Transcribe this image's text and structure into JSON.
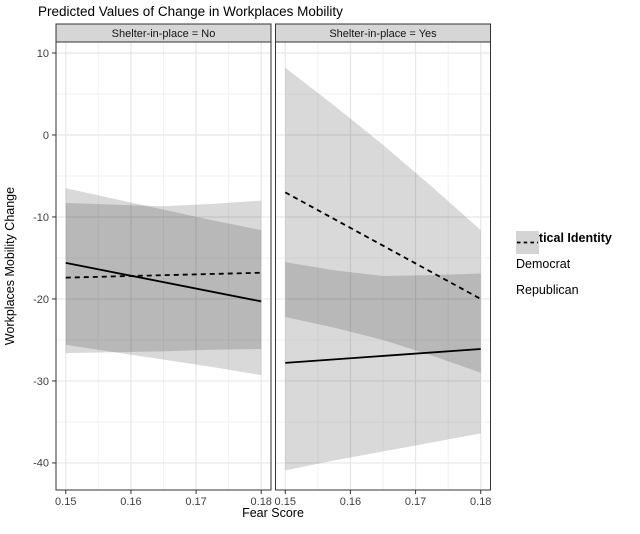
{
  "chart_data": {
    "type": "line",
    "title": "Predicted Values of Change in Workplaces Mobility",
    "xlabel": "Fear Score",
    "ylabel": "Workplaces Mobility Change",
    "x_domain": [
      0.1485,
      0.1815
    ],
    "y_domain": [
      -43.3,
      11.34
    ],
    "x_ticks": [
      {
        "value": 0.15,
        "label": "0.15"
      },
      {
        "value": 0.16,
        "label": "0.16"
      },
      {
        "value": 0.17,
        "label": "0.17"
      },
      {
        "value": 0.18,
        "label": "0.18"
      }
    ],
    "y_ticks": [
      {
        "value": 10,
        "label": "10"
      },
      {
        "value": 0,
        "label": "0"
      },
      {
        "value": -10,
        "label": "-10"
      },
      {
        "value": -20,
        "label": "-20"
      },
      {
        "value": -30,
        "label": "-30"
      },
      {
        "value": -40,
        "label": "-40"
      }
    ],
    "x_minor": [
      0.155,
      0.165,
      0.175
    ],
    "y_minor": [
      5,
      -5,
      -15,
      -25,
      -35
    ],
    "grid": true,
    "legend": {
      "title": "Political Identity",
      "position": "right",
      "items": [
        {
          "label": "Democrat",
          "linestyle": "solid"
        },
        {
          "label": "Republican",
          "linestyle": "dashed"
        }
      ]
    },
    "facets": [
      {
        "label": "Shelter-in-place = No",
        "series": [
          {
            "name": "Democrat",
            "linestyle": "solid",
            "line": {
              "x": [
                0.15,
                0.18
              ],
              "y": [
                -15.6,
                -20.3
              ]
            },
            "ribbon": {
              "x": [
                0.15,
                0.1575,
                0.165,
                0.1725,
                0.18
              ],
              "upper": [
                -6.5,
                -7.8,
                -9.1,
                -10.4,
                -11.6
              ],
              "lower": [
                -25.6,
                -26.5,
                -27.4,
                -28.3,
                -29.3
              ]
            }
          },
          {
            "name": "Republican",
            "linestyle": "dashed",
            "line": {
              "x": [
                0.15,
                0.18
              ],
              "y": [
                -17.4,
                -16.8
              ]
            },
            "ribbon": {
              "x": [
                0.15,
                0.1575,
                0.165,
                0.1725,
                0.18
              ],
              "upper": [
                -8.3,
                -8.5,
                -8.7,
                -8.4,
                -8.0
              ],
              "lower": [
                -26.6,
                -26.5,
                -26.4,
                -26.2,
                -26.1
              ]
            }
          }
        ]
      },
      {
        "label": "Shelter-in-place = Yes",
        "series": [
          {
            "name": "Democrat",
            "linestyle": "solid",
            "line": {
              "x": [
                0.15,
                0.18
              ],
              "y": [
                -27.8,
                -26.1
              ]
            },
            "ribbon": {
              "x": [
                0.15,
                0.1575,
                0.165,
                0.1725,
                0.18
              ],
              "upper": [
                -15.5,
                -16.5,
                -17.2,
                -17.1,
                -16.9
              ],
              "lower": [
                -40.9,
                -39.7,
                -38.6,
                -37.5,
                -36.4
              ]
            }
          },
          {
            "name": "Republican",
            "linestyle": "dashed",
            "line": {
              "x": [
                0.15,
                0.18
              ],
              "y": [
                -7.0,
                -20.0
              ]
            },
            "ribbon": {
              "x": [
                0.15,
                0.1575,
                0.165,
                0.1725,
                0.18
              ],
              "upper": [
                8.2,
                3.6,
                -1.2,
                -6.3,
                -11.6
              ],
              "lower": [
                -22.2,
                -23.5,
                -25.0,
                -26.9,
                -29.0
              ]
            }
          }
        ]
      }
    ],
    "colors": {
      "line": "#000000",
      "ribbon": "rgba(0,0,0,0.15)",
      "grid_major": "#e7e7e7",
      "grid_minor": "#f2f2f2",
      "strip_fill": "#d6d6d6",
      "panel_border": "#333333",
      "tick_mark": "#333333",
      "legend_key_fill": "#d4d4d4"
    }
  }
}
